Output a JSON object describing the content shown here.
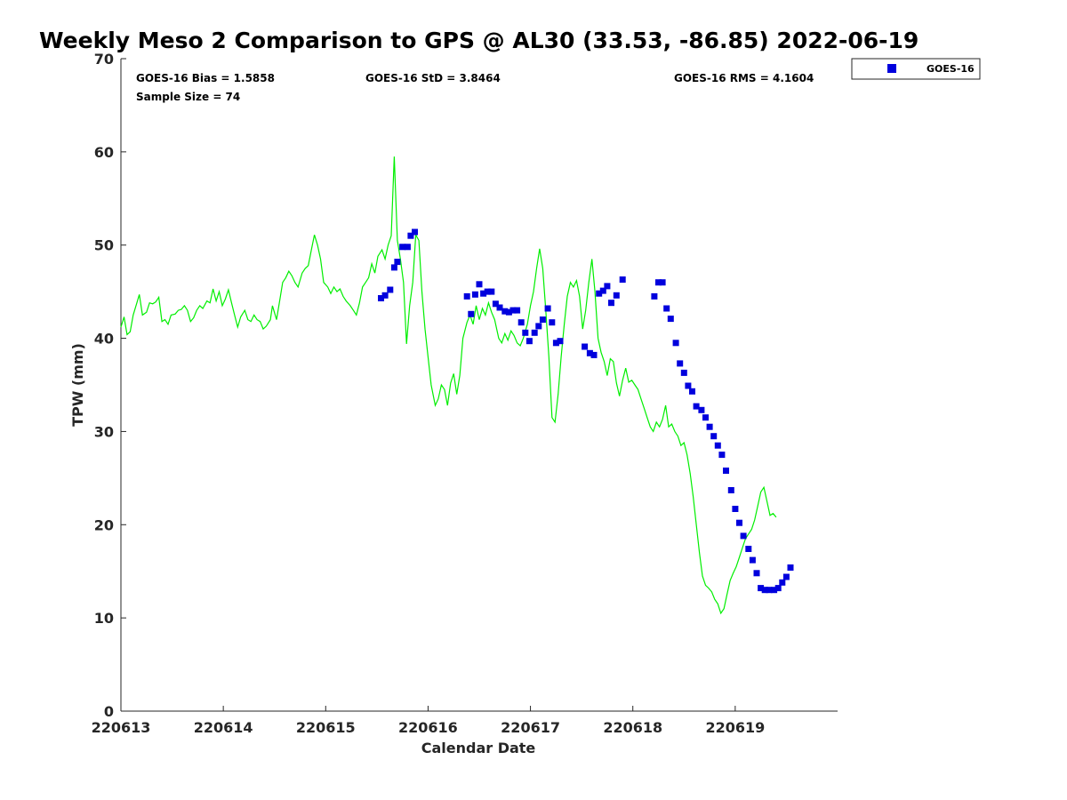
{
  "chart_data": {
    "type": "scatter",
    "title": "Weekly Meso 2 Comparison to GPS @ AL30 (33.53, -86.85) 2022-06-19",
    "xlabel": "Calendar Date",
    "ylabel": "TPW (mm)",
    "xlim": [
      0,
      7
    ],
    "ylim": [
      0,
      70
    ],
    "x_ticks": [
      0,
      1,
      2,
      3,
      4,
      5,
      6
    ],
    "x_tick_labels": [
      "220613",
      "220614",
      "220615",
      "220616",
      "220617",
      "220618",
      "220619"
    ],
    "y_ticks": [
      0,
      10,
      20,
      30,
      40,
      50,
      60,
      70
    ],
    "y_tick_labels": [
      "0",
      "10",
      "20",
      "30",
      "40",
      "50",
      "60",
      "70"
    ],
    "stats": {
      "bias": "GOES-16 Bias = 1.5858",
      "std": "GOES-16 StD = 3.8464",
      "rms": "GOES-16 RMS = 4.1604",
      "sample": "Sample Size = 74"
    },
    "legend": {
      "position": "top-right",
      "entries": [
        "GOES-16"
      ]
    },
    "grid": false,
    "colors": {
      "goes": "#0000dd",
      "gps_line": "#00ee00",
      "axis": "#262626"
    },
    "series": [
      {
        "name": "GOES-16",
        "marker": "square",
        "points": [
          [
            2.54,
            44.3
          ],
          [
            2.58,
            44.6
          ],
          [
            2.63,
            45.2
          ],
          [
            2.67,
            47.6
          ],
          [
            2.7,
            48.2
          ],
          [
            2.75,
            49.8
          ],
          [
            2.8,
            49.8
          ],
          [
            2.83,
            51.0
          ],
          [
            2.87,
            51.4
          ],
          [
            3.38,
            44.5
          ],
          [
            3.42,
            42.6
          ],
          [
            3.46,
            44.7
          ],
          [
            3.5,
            45.8
          ],
          [
            3.54,
            44.8
          ],
          [
            3.58,
            45.0
          ],
          [
            3.62,
            45.0
          ],
          [
            3.66,
            43.7
          ],
          [
            3.7,
            43.3
          ],
          [
            3.75,
            42.9
          ],
          [
            3.79,
            42.8
          ],
          [
            3.83,
            43.0
          ],
          [
            3.87,
            43.0
          ],
          [
            3.91,
            41.7
          ],
          [
            3.95,
            40.6
          ],
          [
            3.99,
            39.7
          ],
          [
            4.04,
            40.6
          ],
          [
            4.08,
            41.3
          ],
          [
            4.12,
            42.0
          ],
          [
            4.17,
            43.2
          ],
          [
            4.21,
            41.7
          ],
          [
            4.25,
            39.5
          ],
          [
            4.29,
            39.7
          ],
          [
            4.53,
            39.1
          ],
          [
            4.58,
            38.4
          ],
          [
            4.62,
            38.2
          ],
          [
            4.67,
            44.8
          ],
          [
            4.71,
            45.1
          ],
          [
            4.75,
            45.6
          ],
          [
            4.79,
            43.8
          ],
          [
            4.84,
            44.6
          ],
          [
            4.9,
            46.3
          ],
          [
            5.21,
            44.5
          ],
          [
            5.25,
            46.0
          ],
          [
            5.29,
            46.0
          ],
          [
            5.33,
            43.2
          ],
          [
            5.37,
            42.1
          ],
          [
            5.42,
            39.5
          ],
          [
            5.46,
            37.3
          ],
          [
            5.5,
            36.3
          ],
          [
            5.54,
            34.9
          ],
          [
            5.58,
            34.3
          ],
          [
            5.62,
            32.7
          ],
          [
            5.67,
            32.3
          ],
          [
            5.71,
            31.5
          ],
          [
            5.75,
            30.5
          ],
          [
            5.79,
            29.5
          ],
          [
            5.83,
            28.5
          ],
          [
            5.87,
            27.5
          ],
          [
            5.91,
            25.8
          ],
          [
            5.96,
            23.7
          ],
          [
            6.0,
            21.7
          ],
          [
            6.04,
            20.2
          ],
          [
            6.08,
            18.8
          ],
          [
            6.13,
            17.4
          ],
          [
            6.17,
            16.2
          ],
          [
            6.21,
            14.8
          ],
          [
            6.25,
            13.2
          ],
          [
            6.29,
            13.0
          ],
          [
            6.33,
            13.0
          ],
          [
            6.38,
            13.0
          ],
          [
            6.42,
            13.2
          ],
          [
            6.46,
            13.8
          ],
          [
            6.5,
            14.4
          ],
          [
            6.54,
            15.4
          ]
        ]
      },
      {
        "name": "",
        "line": true,
        "points": [
          [
            0.0,
            41.2
          ],
          [
            0.03,
            42.3
          ],
          [
            0.06,
            40.4
          ],
          [
            0.09,
            40.7
          ],
          [
            0.12,
            42.5
          ],
          [
            0.15,
            43.6
          ],
          [
            0.18,
            44.7
          ],
          [
            0.21,
            42.5
          ],
          [
            0.25,
            42.8
          ],
          [
            0.28,
            43.8
          ],
          [
            0.31,
            43.7
          ],
          [
            0.34,
            43.9
          ],
          [
            0.37,
            44.4
          ],
          [
            0.4,
            41.8
          ],
          [
            0.43,
            42.0
          ],
          [
            0.46,
            41.5
          ],
          [
            0.49,
            42.5
          ],
          [
            0.53,
            42.6
          ],
          [
            0.56,
            43.0
          ],
          [
            0.59,
            43.1
          ],
          [
            0.62,
            43.5
          ],
          [
            0.65,
            43.0
          ],
          [
            0.68,
            41.8
          ],
          [
            0.71,
            42.2
          ],
          [
            0.74,
            43.0
          ],
          [
            0.77,
            43.5
          ],
          [
            0.8,
            43.2
          ],
          [
            0.84,
            44.0
          ],
          [
            0.87,
            43.8
          ],
          [
            0.9,
            45.3
          ],
          [
            0.93,
            44.0
          ],
          [
            0.96,
            45.0
          ],
          [
            0.99,
            43.5
          ],
          [
            1.02,
            44.2
          ],
          [
            1.05,
            45.2
          ],
          [
            1.08,
            43.8
          ],
          [
            1.11,
            42.5
          ],
          [
            1.14,
            41.2
          ],
          [
            1.17,
            42.3
          ],
          [
            1.21,
            43.0
          ],
          [
            1.24,
            42.0
          ],
          [
            1.27,
            41.8
          ],
          [
            1.3,
            42.5
          ],
          [
            1.33,
            42.0
          ],
          [
            1.36,
            41.8
          ],
          [
            1.39,
            41.0
          ],
          [
            1.42,
            41.3
          ],
          [
            1.46,
            42.0
          ],
          [
            1.48,
            43.5
          ],
          [
            1.52,
            42.0
          ],
          [
            1.55,
            44.0
          ],
          [
            1.58,
            46.0
          ],
          [
            1.61,
            46.5
          ],
          [
            1.64,
            47.2
          ],
          [
            1.67,
            46.7
          ],
          [
            1.7,
            46.0
          ],
          [
            1.73,
            45.5
          ],
          [
            1.77,
            47.0
          ],
          [
            1.8,
            47.5
          ],
          [
            1.83,
            47.8
          ],
          [
            1.86,
            49.5
          ],
          [
            1.89,
            51.1
          ],
          [
            1.92,
            50.0
          ],
          [
            1.95,
            48.5
          ],
          [
            1.98,
            46.0
          ],
          [
            2.02,
            45.5
          ],
          [
            2.05,
            44.8
          ],
          [
            2.08,
            45.5
          ],
          [
            2.11,
            45.0
          ],
          [
            2.14,
            45.3
          ],
          [
            2.17,
            44.5
          ],
          [
            2.2,
            44.0
          ],
          [
            2.24,
            43.5
          ],
          [
            2.27,
            43.0
          ],
          [
            2.3,
            42.5
          ],
          [
            2.33,
            43.8
          ],
          [
            2.36,
            45.5
          ],
          [
            2.39,
            46.0
          ],
          [
            2.42,
            46.5
          ],
          [
            2.45,
            48.0
          ],
          [
            2.48,
            47.0
          ],
          [
            2.51,
            48.8
          ],
          [
            2.55,
            49.5
          ],
          [
            2.58,
            48.5
          ],
          [
            2.61,
            50.0
          ],
          [
            2.64,
            51.0
          ],
          [
            2.67,
            59.5
          ],
          [
            2.7,
            50.5
          ],
          [
            2.73,
            48.5
          ],
          [
            2.76,
            46.0
          ],
          [
            2.79,
            39.4
          ],
          [
            2.82,
            43.5
          ],
          [
            2.85,
            46.0
          ],
          [
            2.88,
            51.1
          ],
          [
            2.91,
            50.5
          ],
          [
            2.94,
            45.0
          ],
          [
            2.97,
            41.0
          ],
          [
            3.0,
            38.0
          ],
          [
            3.03,
            35.0
          ],
          [
            3.07,
            32.8
          ],
          [
            3.1,
            33.5
          ],
          [
            3.13,
            35.0
          ],
          [
            3.16,
            34.5
          ],
          [
            3.19,
            32.8
          ],
          [
            3.22,
            35.2
          ],
          [
            3.25,
            36.2
          ],
          [
            3.28,
            34.0
          ],
          [
            3.31,
            36.0
          ],
          [
            3.34,
            40.0
          ],
          [
            3.38,
            41.7
          ],
          [
            3.41,
            42.5
          ],
          [
            3.44,
            41.5
          ],
          [
            3.47,
            43.5
          ],
          [
            3.5,
            42.0
          ],
          [
            3.53,
            43.2
          ],
          [
            3.56,
            42.5
          ],
          [
            3.59,
            43.8
          ],
          [
            3.62,
            42.8
          ],
          [
            3.65,
            42.0
          ],
          [
            3.69,
            40.0
          ],
          [
            3.72,
            39.5
          ],
          [
            3.75,
            40.5
          ],
          [
            3.78,
            39.8
          ],
          [
            3.81,
            40.8
          ],
          [
            3.84,
            40.3
          ],
          [
            3.87,
            39.5
          ],
          [
            3.9,
            39.2
          ],
          [
            3.93,
            40.0
          ],
          [
            3.97,
            41.5
          ],
          [
            4.0,
            43.5
          ],
          [
            4.03,
            45.0
          ],
          [
            4.06,
            47.5
          ],
          [
            4.09,
            49.6
          ],
          [
            4.12,
            47.5
          ],
          [
            4.15,
            43.0
          ],
          [
            4.18,
            38.0
          ],
          [
            4.21,
            31.5
          ],
          [
            4.24,
            31.0
          ],
          [
            4.27,
            34.0
          ],
          [
            4.3,
            38.0
          ],
          [
            4.33,
            41.5
          ],
          [
            4.36,
            44.5
          ],
          [
            4.39,
            46.0
          ],
          [
            4.42,
            45.5
          ],
          [
            4.45,
            46.2
          ],
          [
            4.48,
            44.5
          ],
          [
            4.51,
            41.0
          ],
          [
            4.54,
            43.0
          ],
          [
            4.57,
            46.0
          ],
          [
            4.6,
            48.5
          ],
          [
            4.63,
            45.0
          ],
          [
            4.66,
            40.0
          ],
          [
            4.69,
            38.5
          ],
          [
            4.72,
            37.5
          ],
          [
            4.75,
            36.0
          ],
          [
            4.78,
            37.8
          ],
          [
            4.81,
            37.5
          ],
          [
            4.84,
            35.2
          ],
          [
            4.87,
            33.8
          ],
          [
            4.9,
            35.5
          ],
          [
            4.93,
            36.8
          ],
          [
            4.96,
            35.3
          ],
          [
            4.99,
            35.5
          ],
          [
            5.02,
            35.0
          ],
          [
            5.05,
            34.5
          ],
          [
            5.08,
            33.5
          ],
          [
            5.11,
            32.5
          ],
          [
            5.14,
            31.5
          ],
          [
            5.17,
            30.5
          ],
          [
            5.2,
            30.0
          ],
          [
            5.23,
            31.0
          ],
          [
            5.26,
            30.5
          ],
          [
            5.29,
            31.3
          ],
          [
            5.32,
            32.8
          ],
          [
            5.35,
            30.5
          ],
          [
            5.38,
            30.8
          ],
          [
            5.41,
            30.0
          ],
          [
            5.44,
            29.5
          ],
          [
            5.47,
            28.5
          ],
          [
            5.5,
            28.8
          ],
          [
            5.53,
            27.5
          ],
          [
            5.56,
            25.5
          ],
          [
            5.59,
            23.0
          ],
          [
            5.62,
            20.0
          ],
          [
            5.65,
            17.0
          ],
          [
            5.68,
            14.5
          ],
          [
            5.71,
            13.5
          ],
          [
            5.74,
            13.2
          ],
          [
            5.77,
            12.8
          ],
          [
            5.8,
            12.0
          ],
          [
            5.83,
            11.5
          ],
          [
            5.86,
            10.5
          ],
          [
            5.89,
            11.0
          ],
          [
            5.92,
            12.5
          ],
          [
            5.95,
            14.0
          ],
          [
            5.98,
            14.8
          ],
          [
            6.01,
            15.5
          ],
          [
            6.04,
            16.5
          ],
          [
            6.07,
            17.5
          ],
          [
            6.1,
            18.5
          ],
          [
            6.13,
            19.0
          ],
          [
            6.16,
            19.5
          ],
          [
            6.19,
            20.5
          ],
          [
            6.22,
            22.0
          ],
          [
            6.25,
            23.5
          ],
          [
            6.28,
            24.0
          ],
          [
            6.31,
            22.5
          ],
          [
            6.34,
            21.0
          ],
          [
            6.37,
            21.2
          ],
          [
            6.4,
            20.8
          ]
        ]
      }
    ]
  }
}
